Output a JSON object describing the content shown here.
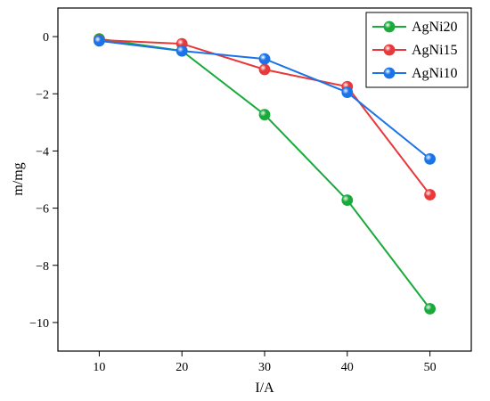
{
  "chart_data": {
    "type": "line",
    "xlabel": "I/A",
    "ylabel": "m/mg",
    "x": [
      10,
      20,
      30,
      40,
      50
    ],
    "xlim": [
      5,
      55
    ],
    "ylim": [
      -11,
      1
    ],
    "xticks": [
      10,
      20,
      30,
      40,
      50
    ],
    "yticks": [
      0,
      -2,
      -4,
      -6,
      -8,
      -10
    ],
    "ytick_labels": [
      "0",
      "−2",
      "−4",
      "−6",
      "−8",
      "−10"
    ],
    "grid": false,
    "legend_position": "top-right",
    "series": [
      {
        "name": "AgNi20",
        "color": "#1aaa3c",
        "values": [
          -0.08,
          -0.5,
          -2.73,
          -5.72,
          -9.52
        ]
      },
      {
        "name": "AgNi15",
        "color": "#e8383a",
        "values": [
          -0.12,
          -0.25,
          -1.15,
          -1.75,
          -5.53
        ]
      },
      {
        "name": "AgNi10",
        "color": "#1a73e8",
        "values": [
          -0.15,
          -0.5,
          -0.78,
          -1.95,
          -4.28
        ]
      }
    ]
  }
}
